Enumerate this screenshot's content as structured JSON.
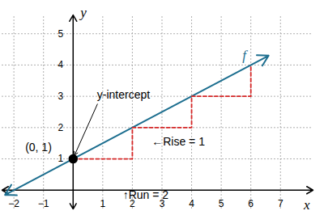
{
  "chart_data": {
    "type": "line",
    "xlim": [
      -2.4,
      8.1
    ],
    "ylim": [
      -0.6,
      5.6
    ],
    "xticks": [
      {
        "value": -2,
        "label": "−2"
      },
      {
        "value": -1,
        "label": "−1"
      },
      1,
      2,
      3,
      4,
      5,
      6,
      7
    ],
    "yticks": [
      1,
      2,
      3,
      4,
      5
    ],
    "grid": true,
    "x_label": "x",
    "y_label": "y",
    "series": [
      {
        "name": "f",
        "type": "line",
        "color": "#1c6e8f",
        "marker": "arrow",
        "x": [
          -2.3,
          6.6
        ],
        "values": [
          -0.15,
          4.3
        ]
      },
      {
        "type": "line",
        "color": "#d62828",
        "line_style": "dashed",
        "x": [
          0,
          2,
          2,
          4,
          4,
          6,
          6
        ],
        "values": [
          1,
          1,
          2,
          2,
          3,
          3,
          4
        ]
      },
      {
        "type": "scatter",
        "color": "#000000",
        "marker": "circle",
        "x": [
          0
        ],
        "values": [
          1
        ]
      }
    ],
    "annotations": [
      {
        "text": "y-intercept",
        "x": 1.7,
        "y": 3.05
      },
      {
        "text": "(0, 1)",
        "x": -1.17,
        "y": 1.37
      },
      {
        "text": "←Rise = 1",
        "x": 3.55,
        "y": 1.55
      },
      {
        "text": "↑Run = 2",
        "x": 2.45,
        "y": -0.15
      }
    ]
  }
}
